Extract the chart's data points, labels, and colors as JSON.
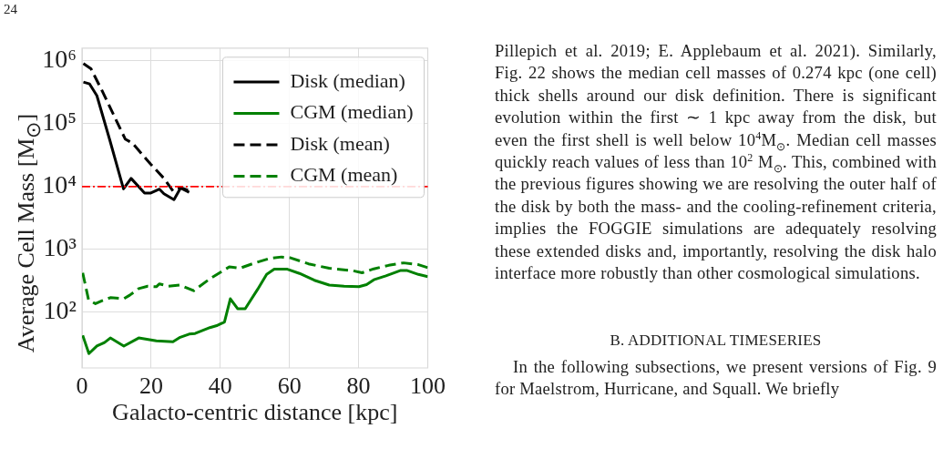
{
  "chart_data": {
    "type": "line",
    "xlabel": "Galacto-centric distance [kpc]",
    "ylabel": "Average Cell Mass [M$_{⊙}$]",
    "annotations": [
      "24",
      "Pillepich et al. 2019; E. Applebaum et al. 2021). Similarly, Fig. 22 shows the median cell masses of 0.274 kpc (one cell) thick shells around our disk definition. There is significant evolution within the first ∼ 1 kpc away from the disk, but even the first shell is well below 10$^{4}$M$_{⊙}$. Median cell masses quickly reach values of less than 10$^{2}$ M$_{⊙}$. This, combined with the previous figures showing we are resolving the outer half of the disk by both the mass- and the cooling-refinement criteria, implies the FOGGIE simulations are adequately resolving these extended disks and, importantly, resolving the disk halo interface more robustly than other cosmological simulations.",
      "B. ADDITIONAL TIMESERIES",
      "In the following subsections, we present versions of Fig. 9 for Maelstrom, Hurricane, and Squall. We briefly"
    ],
    "series": [
      {
        "name": "Disk (median)",
        "color": "#000000",
        "line_style": "solid",
        "x": [
          0.4,
          2.2,
          4.3,
          8,
          12,
          14.2,
          18.1,
          19.9,
          22.4,
          23.7,
          26.6,
          28.5,
          31
        ],
        "values": [
          460000,
          430000,
          280000,
          56000,
          9200,
          13500,
          7900,
          7900,
          9100,
          7700,
          6200,
          9500,
          8100
        ]
      },
      {
        "name": "CGM (median)",
        "color": "#008000",
        "line_style": "solid",
        "x": [
          0.2,
          2,
          4.3,
          6.5,
          8.2,
          12.1,
          16.4,
          21.5,
          26.3,
          28.4,
          31,
          32.7,
          37,
          39.2,
          41.2,
          42.9,
          45,
          47.2,
          50.8,
          53.4,
          55.6,
          59.4,
          62.9,
          67.2,
          71.5,
          75.8,
          80.1,
          82.3,
          84.4,
          87.9,
          92.2,
          93.9,
          97.3,
          100
        ],
        "values": [
          43,
          22,
          29,
          33,
          39,
          29,
          39,
          35,
          34,
          40,
          45,
          46,
          57,
          62,
          70,
          164,
          114,
          114,
          232,
          402,
          485,
          485,
          415,
          323,
          271,
          260,
          255,
          275,
          329,
          380,
          463,
          463,
          400,
          368
        ]
      },
      {
        "name": "Disk (mean)",
        "color": "#000000",
        "line_style": "dashed",
        "x": [
          0.4,
          2.6,
          6,
          12.5,
          14.6,
          19.8,
          23.7,
          26.3,
          28.5,
          31
        ],
        "values": [
          910000,
          750000,
          320000,
          57000,
          49000,
          23000,
          13500,
          8500,
          9700,
          8600
        ]
      },
      {
        "name": "CGM (mean)",
        "color": "#008000",
        "line_style": "dashed",
        "x": [
          0.2,
          1.9,
          3.9,
          6,
          8.2,
          12.1,
          13.8,
          16.4,
          19,
          21.5,
          22.4,
          25,
          28.4,
          32.3,
          37,
          40.5,
          42.6,
          45.6,
          50,
          54.3,
          57.7,
          60.3,
          65.5,
          71.5,
          78.4,
          81,
          84.4,
          88.7,
          93,
          97.3,
          100
        ],
        "values": [
          425,
          158,
          137,
          154,
          171,
          164,
          187,
          238,
          260,
          255,
          283,
          260,
          271,
          220,
          341,
          448,
          528,
          501,
          611,
          720,
          759,
          735,
          590,
          501,
          458,
          425,
          491,
          558,
          611,
          572,
          512
        ]
      }
    ],
    "ref_lines": [
      {
        "axis": "y",
        "value": 10000,
        "color": "#ff0000",
        "line_style": "dashdot"
      }
    ],
    "log": "y",
    "xlim": [
      0,
      100
    ],
    "xticks": [
      0,
      20,
      40,
      60,
      80,
      100
    ],
    "ylim": [
      13,
      1600000
    ],
    "yticks": [
      {
        "value": 100,
        "label": "10²"
      },
      {
        "value": 1000,
        "label": "10³"
      },
      {
        "value": 10000,
        "label": "10⁴"
      },
      {
        "value": 100000,
        "label": "10⁵"
      },
      {
        "value": 1000000,
        "label": "10⁶"
      }
    ],
    "grid": true,
    "legend": "top right"
  }
}
